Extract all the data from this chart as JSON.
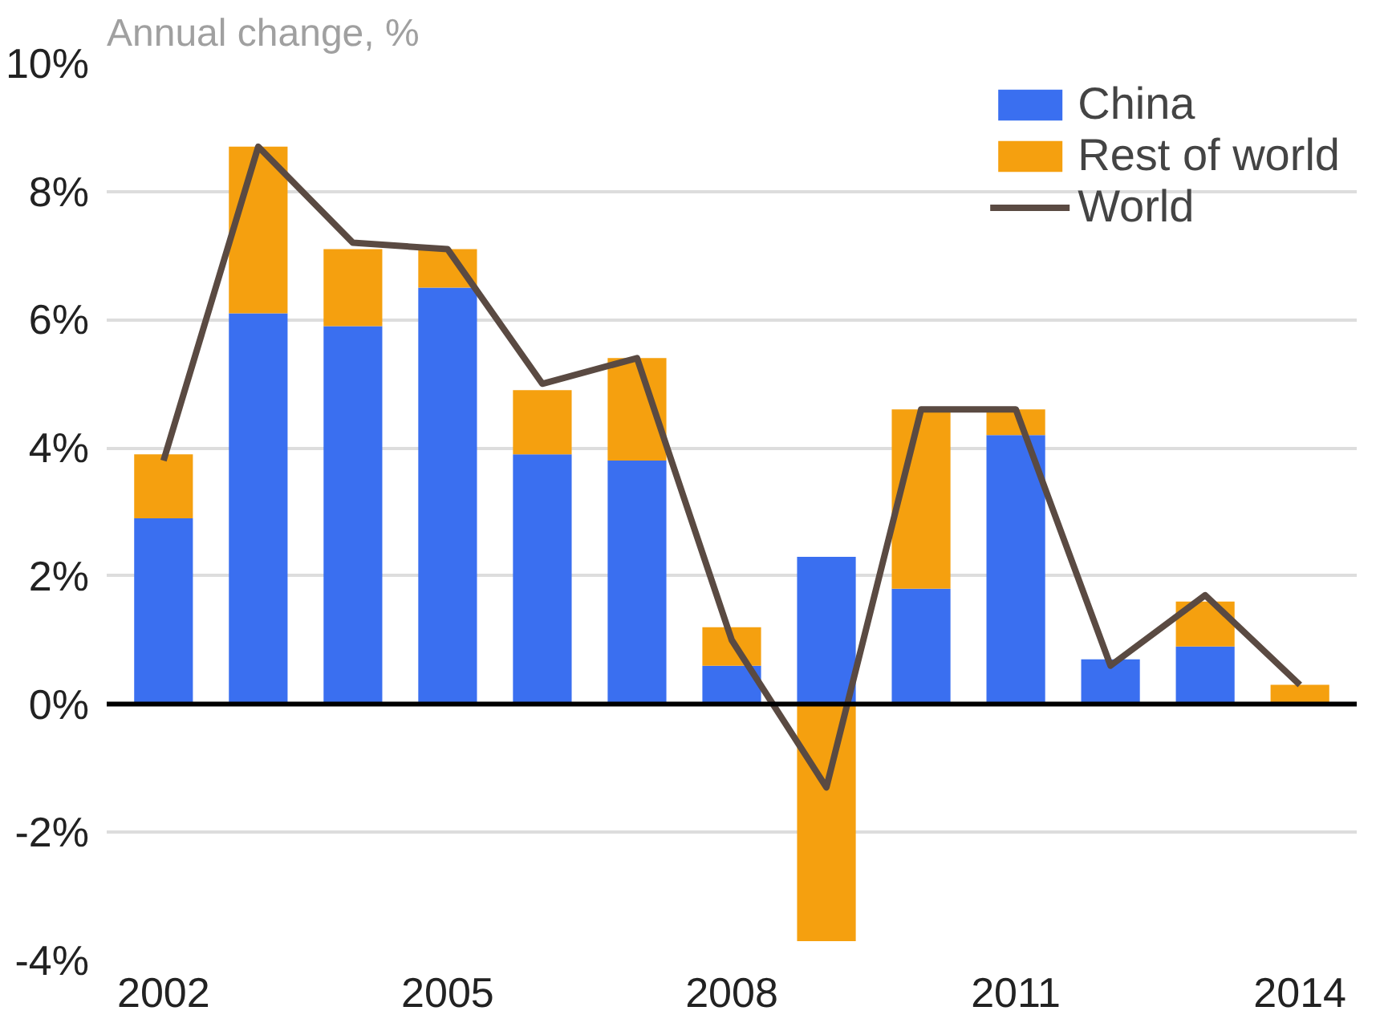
{
  "chart_data": {
    "type": "bar",
    "title": "Annual change, %",
    "stacked": true,
    "x": [
      2002,
      2003,
      2004,
      2005,
      2006,
      2007,
      2008,
      2009,
      2010,
      2011,
      2012,
      2013,
      2014
    ],
    "series": [
      {
        "name": "China",
        "color": "#3a6ff0",
        "values": [
          2.9,
          6.1,
          5.9,
          6.5,
          3.9,
          3.8,
          0.6,
          2.3,
          1.8,
          4.2,
          0.7,
          0.9,
          0.0
        ]
      },
      {
        "name": "Rest of world",
        "color": "#f5a00f",
        "values": [
          1.0,
          2.6,
          1.2,
          0.6,
          1.0,
          1.6,
          0.6,
          -3.7,
          2.8,
          0.4,
          0.0,
          0.7,
          0.3
        ]
      },
      {
        "name": "World",
        "type": "line",
        "color": "#5a4a42",
        "values": [
          3.8,
          8.7,
          7.2,
          7.1,
          5.0,
          5.4,
          1.0,
          -1.3,
          4.6,
          4.6,
          0.6,
          1.7,
          0.3
        ]
      }
    ],
    "xlim": [
      2001.4,
      2014.6
    ],
    "xticks": [
      2002,
      2005,
      2008,
      2011,
      2014
    ],
    "ylim": [
      -4,
      10
    ],
    "yticks": [
      {
        "value": -4,
        "label": "-4%"
      },
      {
        "value": -2,
        "label": "-2%"
      },
      {
        "value": 0,
        "label": "0%"
      },
      {
        "value": 2,
        "label": "2%"
      },
      {
        "value": 4,
        "label": "4%"
      },
      {
        "value": 6,
        "label": "6%"
      },
      {
        "value": 8,
        "label": "8%"
      },
      {
        "value": 10,
        "label": "10%"
      }
    ],
    "ref_lines": [
      {
        "axis": "y",
        "value": 0,
        "color": "#000000"
      }
    ],
    "grid": "y",
    "legend": "top right",
    "line_style": "solid"
  }
}
